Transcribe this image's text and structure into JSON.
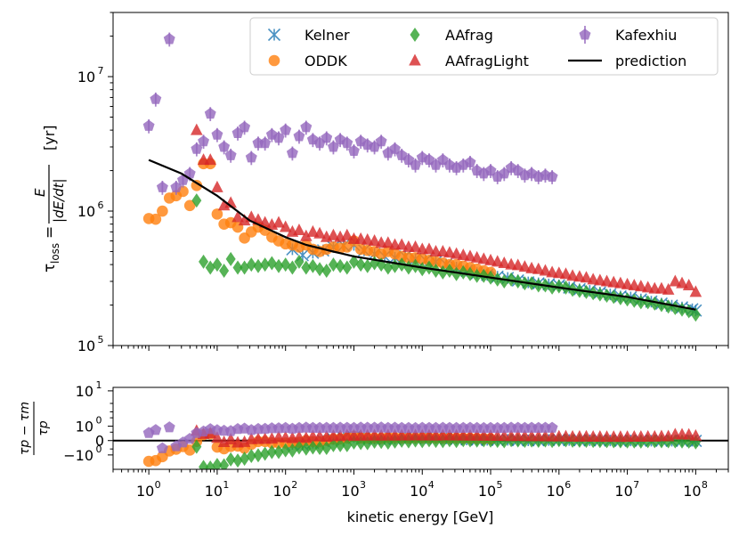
{
  "chart_data": [
    {
      "type": "scatter",
      "panel": "main",
      "xscale": "log",
      "yscale": "log",
      "xlim": [
        0.3,
        300000000
      ],
      "ylim": [
        100000,
        30000000
      ],
      "xlabel": "",
      "ylabel": {
        "prefix": "τ",
        "sub": "loss",
        "eq": "=",
        "frac_num": "E",
        "frac_den": "|dE/dt|",
        "unit": "[yr]"
      },
      "yticks": [
        {
          "value": 100000,
          "base": "10",
          "exp": "5"
        },
        {
          "value": 1000000,
          "base": "10",
          "exp": "6"
        },
        {
          "value": 10000000,
          "base": "10",
          "exp": "7"
        }
      ],
      "legend_position": "top-right",
      "series": [
        {
          "name": "Kelner",
          "color": "#1f77b4",
          "marker": "x",
          "x": [
            126,
            178,
            251,
            355,
            501,
            708,
            1000,
            1410,
            2000,
            2820,
            3980,
            5620,
            7940,
            11200,
            15800,
            22400,
            31600,
            44700,
            63100,
            89100,
            126000,
            178000,
            251000,
            355000,
            501000,
            708000,
            1000000,
            1410000,
            2000000,
            2820000,
            3980000,
            5620000,
            7940000,
            11200000,
            15800000,
            22400000,
            31600000,
            44700000,
            63100000,
            89100000,
            100000000
          ],
          "y": [
            520000,
            470000,
            490000,
            510000,
            540000,
            555000,
            560000,
            510000,
            480000,
            460000,
            450000,
            460000,
            440000,
            430000,
            420000,
            400000,
            380000,
            360000,
            345000,
            335000,
            325000,
            318000,
            305000,
            295000,
            290000,
            285000,
            280000,
            270000,
            262000,
            255000,
            248000,
            240000,
            232000,
            228000,
            220000,
            212000,
            205000,
            198000,
            192000,
            186000,
            182000
          ]
        },
        {
          "name": "ODDK",
          "color": "#ff7f0e",
          "marker": "o",
          "x": [
            1,
            1.26,
            1.58,
            2,
            2.51,
            3.16,
            3.98,
            5.01,
            6.31,
            7.94,
            10,
            12.6,
            15.8,
            20,
            25.1,
            31.6,
            39.8,
            50.1,
            63.1,
            79.4,
            100,
            126,
            158,
            200,
            251,
            316,
            398,
            501,
            631,
            794,
            1000,
            1260,
            1580,
            2000,
            2510,
            3160,
            3980,
            5010,
            6310,
            7940,
            10000,
            12600,
            15800,
            20000,
            25100,
            31600,
            39800,
            50100,
            63100,
            79400,
            100000
          ],
          "y": [
            880000,
            870000,
            1000000,
            1250000,
            1300000,
            1400000,
            1100000,
            1550000,
            2250000,
            2250000,
            950000,
            800000,
            820000,
            760000,
            630000,
            700000,
            760000,
            720000,
            640000,
            600000,
            570000,
            560000,
            540000,
            560000,
            520000,
            500000,
            520000,
            540000,
            530000,
            540000,
            600000,
            520000,
            510000,
            500000,
            480000,
            500000,
            480000,
            460000,
            450000,
            450000,
            440000,
            430000,
            420000,
            410000,
            400000,
            400000,
            390000,
            380000,
            370000,
            360000,
            350000
          ]
        },
        {
          "name": "AAfrag",
          "color": "#2ca02c",
          "marker": "d",
          "x": [
            5,
            6.31,
            7.94,
            10,
            12.6,
            15.8,
            20,
            25.1,
            31.6,
            39.8,
            50.1,
            63.1,
            79.4,
            100,
            126,
            158,
            200,
            251,
            316,
            398,
            501,
            631,
            794,
            1000,
            1260,
            1580,
            2000,
            2510,
            3160,
            3980,
            5010,
            6310,
            7940,
            10000,
            12600,
            15800,
            20000,
            25100,
            31600,
            39800,
            50100,
            63100,
            79400,
            100000,
            126000,
            158000,
            200000,
            251000,
            316000,
            398000,
            501000,
            631000,
            794000,
            1000000,
            1260000,
            1580000,
            2000000,
            2510000,
            3160000,
            3980000,
            5010000,
            6310000,
            7940000,
            10000000,
            12600000,
            15800000,
            20000000,
            25100000,
            31600000,
            39800000,
            50100000,
            63100000,
            79400000,
            100000000
          ],
          "y": [
            1200000,
            420000,
            380000,
            400000,
            360000,
            440000,
            380000,
            380000,
            400000,
            390000,
            400000,
            410000,
            390000,
            400000,
            380000,
            420000,
            380000,
            390000,
            370000,
            360000,
            400000,
            390000,
            380000,
            420000,
            400000,
            390000,
            410000,
            400000,
            380000,
            390000,
            400000,
            380000,
            390000,
            370000,
            380000,
            360000,
            350000,
            360000,
            340000,
            350000,
            340000,
            330000,
            330000,
            320000,
            310000,
            300000,
            310000,
            300000,
            290000,
            290000,
            280000,
            280000,
            270000,
            275000,
            270000,
            260000,
            255000,
            250000,
            245000,
            240000,
            235000,
            230000,
            225000,
            220000,
            215000,
            210000,
            210000,
            205000,
            200000,
            195000,
            190000,
            185000,
            180000,
            170000
          ]
        },
        {
          "name": "AAfragLight",
          "color": "#d62728",
          "marker": "^",
          "x": [
            5,
            6.31,
            7.94,
            10,
            12.6,
            15.8,
            20,
            25.1,
            31.6,
            39.8,
            50.1,
            63.1,
            79.4,
            100,
            126,
            158,
            200,
            251,
            316,
            398,
            501,
            631,
            794,
            1000,
            1260,
            1580,
            2000,
            2510,
            3160,
            3980,
            5010,
            6310,
            7940,
            10000,
            12600,
            15800,
            20000,
            25100,
            31600,
            39800,
            50100,
            63100,
            79400,
            100000,
            126000,
            158000,
            200000,
            251000,
            316000,
            398000,
            501000,
            631000,
            794000,
            1000000,
            1260000,
            1580000,
            2000000,
            2510000,
            3160000,
            3980000,
            5010000,
            6310000,
            7940000,
            10000000,
            12600000,
            15800000,
            20000000,
            25100000,
            31600000,
            39800000,
            50100000,
            63100000,
            79400000,
            100000000
          ],
          "y": [
            4000000,
            2400000,
            2400000,
            1500000,
            1100000,
            1150000,
            900000,
            850000,
            900000,
            860000,
            820000,
            790000,
            820000,
            760000,
            700000,
            720000,
            650000,
            700000,
            680000,
            640000,
            660000,
            640000,
            660000,
            620000,
            620000,
            610000,
            600000,
            580000,
            580000,
            560000,
            560000,
            540000,
            540000,
            520000,
            520000,
            500000,
            500000,
            490000,
            480000,
            470000,
            460000,
            450000,
            440000,
            430000,
            420000,
            410000,
            400000,
            395000,
            385000,
            375000,
            370000,
            360000,
            350000,
            345000,
            340000,
            330000,
            325000,
            320000,
            310000,
            305000,
            300000,
            295000,
            290000,
            285000,
            280000,
            275000,
            270000,
            265000,
            265000,
            260000,
            300000,
            290000,
            280000,
            250000
          ]
        },
        {
          "name": "Kafexhiu",
          "color": "#9467bd",
          "marker": "p",
          "x": [
            1,
            1.26,
            1.58,
            2,
            2.51,
            3.16,
            3.98,
            5.01,
            6.31,
            7.94,
            10,
            12.6,
            15.8,
            20,
            25.1,
            31.6,
            39.8,
            50.1,
            63.1,
            79.4,
            100,
            126,
            158,
            200,
            251,
            316,
            398,
            501,
            631,
            794,
            1000,
            1260,
            1580,
            2000,
            2510,
            3160,
            3980,
            5010,
            6310,
            7940,
            10000,
            12600,
            15800,
            20000,
            25100,
            31600,
            39800,
            50100,
            63100,
            79400,
            100000,
            126000,
            158000,
            200000,
            251000,
            316000,
            398000,
            501000,
            631000,
            794000
          ],
          "y": [
            4300000,
            6800000,
            1500000,
            19000000,
            1500000,
            1700000,
            1900000,
            2900000,
            3300000,
            5300000,
            3700000,
            3000000,
            2600000,
            3800000,
            4200000,
            2500000,
            3200000,
            3200000,
            3700000,
            3500000,
            4000000,
            2700000,
            3600000,
            4200000,
            3400000,
            3200000,
            3500000,
            3000000,
            3400000,
            3200000,
            2800000,
            3300000,
            3100000,
            3000000,
            3300000,
            2700000,
            2900000,
            2600000,
            2400000,
            2200000,
            2500000,
            2400000,
            2200000,
            2400000,
            2200000,
            2100000,
            2200000,
            2300000,
            2000000,
            1900000,
            2000000,
            1800000,
            1900000,
            2100000,
            2000000,
            1850000,
            1900000,
            1800000,
            1850000,
            1800000
          ],
          "yerr_rel": 0.12
        },
        {
          "name": "prediction",
          "color": "#000000",
          "marker": "line",
          "x": [
            1,
            3,
            10,
            30,
            100,
            200,
            500,
            1000,
            10000,
            100000,
            1000000,
            10000000,
            100000000
          ],
          "y": [
            2400000,
            1900000,
            1300000,
            850000,
            640000,
            560000,
            500000,
            460000,
            380000,
            320000,
            270000,
            230000,
            185000
          ]
        }
      ]
    },
    {
      "type": "scatter",
      "panel": "residual",
      "xscale": "log",
      "yscale": "symlog",
      "xlim": [
        0.3,
        300000000
      ],
      "ylim": [
        -3,
        12
      ],
      "xlabel": "kinetic energy [GeV]",
      "ylabel": {
        "num": "τp − τm",
        "den": "τp"
      },
      "xticks": [
        {
          "value": 1,
          "base": "10",
          "exp": "0"
        },
        {
          "value": 10,
          "base": "10",
          "exp": "1"
        },
        {
          "value": 100,
          "base": "10",
          "exp": "2"
        },
        {
          "value": 1000,
          "base": "10",
          "exp": "3"
        },
        {
          "value": 10000,
          "base": "10",
          "exp": "4"
        },
        {
          "value": 100000,
          "base": "10",
          "exp": "5"
        },
        {
          "value": 1000000,
          "base": "10",
          "exp": "6"
        },
        {
          "value": 10000000,
          "base": "10",
          "exp": "7"
        },
        {
          "value": 100000000,
          "base": "10",
          "exp": "8"
        }
      ],
      "yticks": [
        {
          "value": 10,
          "label": "10",
          "exp": "1"
        },
        {
          "value": 1,
          "label": "10",
          "exp": "0"
        },
        {
          "value": 0,
          "label": "0",
          "exp": ""
        },
        {
          "value": -1,
          "label": "−10",
          "exp": "0"
        }
      ],
      "reference_line": 0
    }
  ]
}
